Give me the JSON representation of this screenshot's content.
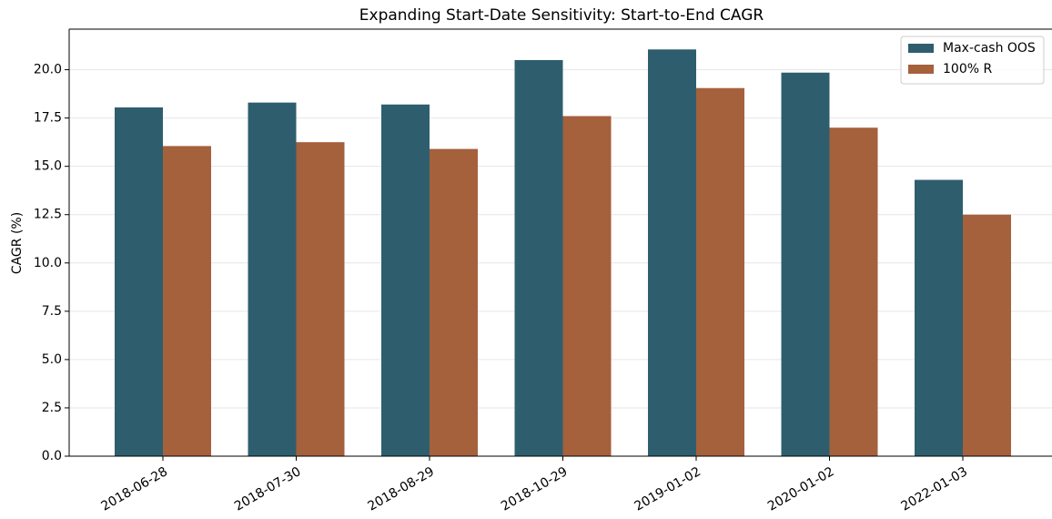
{
  "chart_data": {
    "type": "bar",
    "title": "Expanding Start-Date Sensitivity: Start-to-End CAGR",
    "ylabel": "CAGR (%)",
    "categories": [
      "2018-06-28",
      "2018-07-30",
      "2018-08-29",
      "2018-10-29",
      "2019-01-02",
      "2020-01-02",
      "2022-01-03"
    ],
    "series": [
      {
        "name": "Max-cash OOS",
        "color": "#2e5e6e",
        "values": [
          18.05,
          18.3,
          18.2,
          20.5,
          21.05,
          19.85,
          14.3
        ]
      },
      {
        "name": "100% R",
        "color": "#a5603c",
        "values": [
          16.05,
          16.25,
          15.9,
          17.6,
          19.05,
          17.0,
          12.5
        ]
      }
    ],
    "ylim": [
      0,
      22.1
    ],
    "yticks": [
      {
        "value": 0,
        "label": "0.0"
      },
      2.5,
      {
        "value": 5,
        "label": "5.0"
      },
      7.5,
      {
        "value": 10,
        "label": "10.0"
      },
      12.5,
      {
        "value": 15,
        "label": "15.0"
      },
      17.5,
      {
        "value": 20,
        "label": "20.0"
      }
    ],
    "grid": true,
    "legend": "upper right"
  }
}
